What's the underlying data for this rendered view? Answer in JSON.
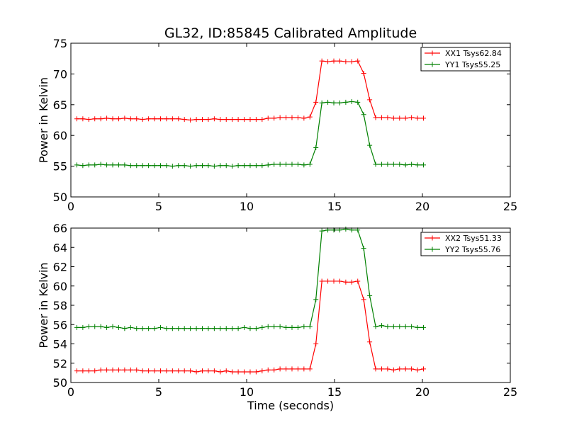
{
  "chart_data": {
    "type": "line",
    "title": "GL32, ID:85845 Calibrated Amplitude",
    "xlabel": "Time (seconds)",
    "x": [
      0.34,
      0.68,
      1.02,
      1.36,
      1.7,
      2.04,
      2.38,
      2.72,
      3.06,
      3.4,
      3.74,
      4.08,
      4.42,
      4.76,
      5.1,
      5.44,
      5.78,
      6.12,
      6.46,
      6.8,
      7.14,
      7.48,
      7.82,
      8.16,
      8.5,
      8.84,
      9.18,
      9.52,
      9.86,
      10.2,
      10.54,
      10.88,
      11.22,
      11.56,
      11.9,
      12.24,
      12.58,
      12.92,
      13.26,
      13.6,
      13.94,
      14.28,
      14.62,
      14.96,
      15.3,
      15.64,
      15.98,
      16.32,
      16.66,
      17.0,
      17.34,
      17.68,
      18.02,
      18.36,
      18.7,
      19.04,
      19.38,
      19.72,
      20.06
    ],
    "panels": [
      {
        "ylabel": "Power in Kelvin",
        "xlim": [
          0,
          25
        ],
        "ylim": [
          50,
          75
        ],
        "xticks": [
          "0",
          "5",
          "10",
          "15",
          "20",
          "25"
        ],
        "yticks": [
          "50",
          "55",
          "60",
          "65",
          "70",
          "75"
        ],
        "legend_position": "upper right",
        "series": [
          {
            "name": "XX1 Tsys62.84",
            "color": "#ff0000",
            "values": [
              62.7,
              62.7,
              62.6,
              62.7,
              62.7,
              62.8,
              62.7,
              62.7,
              62.8,
              62.7,
              62.7,
              62.6,
              62.7,
              62.7,
              62.7,
              62.7,
              62.7,
              62.7,
              62.6,
              62.5,
              62.6,
              62.6,
              62.6,
              62.7,
              62.6,
              62.6,
              62.6,
              62.6,
              62.6,
              62.6,
              62.6,
              62.6,
              62.8,
              62.8,
              62.9,
              62.9,
              62.9,
              62.9,
              62.8,
              63.0,
              65.4,
              72.1,
              72.0,
              72.1,
              72.1,
              72.0,
              72.0,
              72.1,
              70.1,
              65.8,
              62.9,
              62.9,
              62.9,
              62.8,
              62.8,
              62.8,
              62.9,
              62.8,
              62.8
            ]
          },
          {
            "name": "YY1 Tsys55.25",
            "color": "#008000",
            "values": [
              55.2,
              55.1,
              55.2,
              55.2,
              55.3,
              55.2,
              55.2,
              55.2,
              55.2,
              55.1,
              55.1,
              55.1,
              55.1,
              55.1,
              55.1,
              55.1,
              55.0,
              55.1,
              55.1,
              55.0,
              55.1,
              55.1,
              55.1,
              55.0,
              55.1,
              55.1,
              55.0,
              55.1,
              55.1,
              55.1,
              55.1,
              55.1,
              55.2,
              55.3,
              55.3,
              55.3,
              55.3,
              55.3,
              55.2,
              55.3,
              58.0,
              65.3,
              65.4,
              65.3,
              65.3,
              65.4,
              65.5,
              65.4,
              63.4,
              58.4,
              55.3,
              55.3,
              55.3,
              55.3,
              55.3,
              55.2,
              55.3,
              55.2,
              55.2
            ]
          }
        ]
      },
      {
        "ylabel": "Power in Kelvin",
        "xlim": [
          0,
          25
        ],
        "ylim": [
          50,
          66
        ],
        "xticks": [
          "0",
          "5",
          "10",
          "15",
          "20",
          "25"
        ],
        "yticks": [
          "50",
          "52",
          "54",
          "56",
          "58",
          "60",
          "62",
          "64",
          "66"
        ],
        "legend_position": "upper right",
        "series": [
          {
            "name": "XX2 Tsys51.33",
            "color": "#ff0000",
            "values": [
              51.2,
              51.2,
              51.2,
              51.2,
              51.3,
              51.3,
              51.3,
              51.3,
              51.3,
              51.3,
              51.3,
              51.2,
              51.2,
              51.2,
              51.2,
              51.2,
              51.2,
              51.2,
              51.2,
              51.2,
              51.1,
              51.2,
              51.2,
              51.2,
              51.1,
              51.2,
              51.1,
              51.1,
              51.1,
              51.1,
              51.1,
              51.2,
              51.3,
              51.3,
              51.4,
              51.4,
              51.4,
              51.4,
              51.4,
              51.4,
              54.0,
              60.5,
              60.5,
              60.5,
              60.5,
              60.4,
              60.4,
              60.5,
              58.6,
              54.2,
              51.4,
              51.4,
              51.4,
              51.3,
              51.4,
              51.4,
              51.4,
              51.3,
              51.4
            ]
          },
          {
            "name": "YY2 Tsys55.76",
            "color": "#008000",
            "values": [
              55.7,
              55.7,
              55.8,
              55.8,
              55.8,
              55.7,
              55.8,
              55.7,
              55.6,
              55.7,
              55.6,
              55.6,
              55.6,
              55.6,
              55.7,
              55.6,
              55.6,
              55.6,
              55.6,
              55.6,
              55.6,
              55.6,
              55.6,
              55.6,
              55.6,
              55.6,
              55.6,
              55.6,
              55.7,
              55.6,
              55.6,
              55.7,
              55.8,
              55.8,
              55.8,
              55.7,
              55.7,
              55.7,
              55.8,
              55.8,
              58.6,
              65.7,
              65.8,
              65.8,
              65.8,
              65.9,
              65.8,
              65.8,
              63.9,
              59.0,
              55.8,
              55.9,
              55.8,
              55.8,
              55.8,
              55.8,
              55.8,
              55.7,
              55.7
            ]
          }
        ]
      }
    ]
  }
}
